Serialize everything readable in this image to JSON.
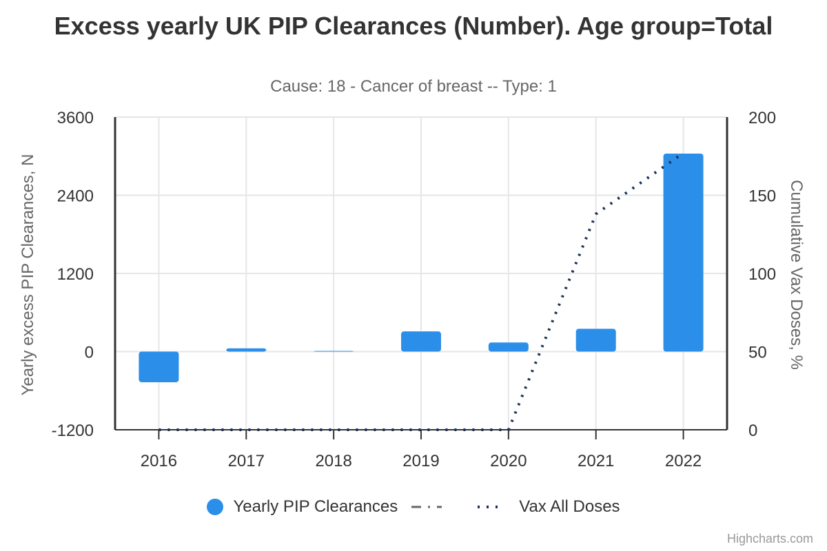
{
  "chart_data": {
    "type": "bar",
    "title": "Excess yearly UK PIP Clearances (Number). Age group=Total",
    "subtitle": "Cause: 18 - Cancer of breast -- Type: 1",
    "categories": [
      "2016",
      "2017",
      "2018",
      "2019",
      "2020",
      "2021",
      "2022"
    ],
    "series": [
      {
        "name": "Yearly PIP Clearances",
        "type": "bar",
        "axis": "left",
        "color": "#2b8fea",
        "values": [
          -470,
          50,
          10,
          310,
          140,
          350,
          3040
        ]
      },
      {
        "name": "Vax All Doses",
        "type": "line",
        "axis": "right",
        "color": "#1a3358",
        "values": [
          0,
          0,
          0,
          0,
          0,
          138,
          177
        ]
      }
    ],
    "legend_extra_marker": {
      "style": "dash-dot",
      "color": "#666666"
    },
    "ylabel_left": "Yearly excess PIP Clearances, N",
    "ylabel_right": "Cumulative Vax Doses, %",
    "ylim_left": [
      -1200,
      3600
    ],
    "yticks_left": [
      "-1200",
      "0",
      "1200",
      "2400",
      "3600"
    ],
    "ylim_right": [
      0,
      200
    ],
    "yticks_right": [
      "0",
      "50",
      "100",
      "150",
      "200"
    ],
    "grid": true,
    "legend_position": "bottom-center",
    "credits": "Highcharts.com"
  }
}
